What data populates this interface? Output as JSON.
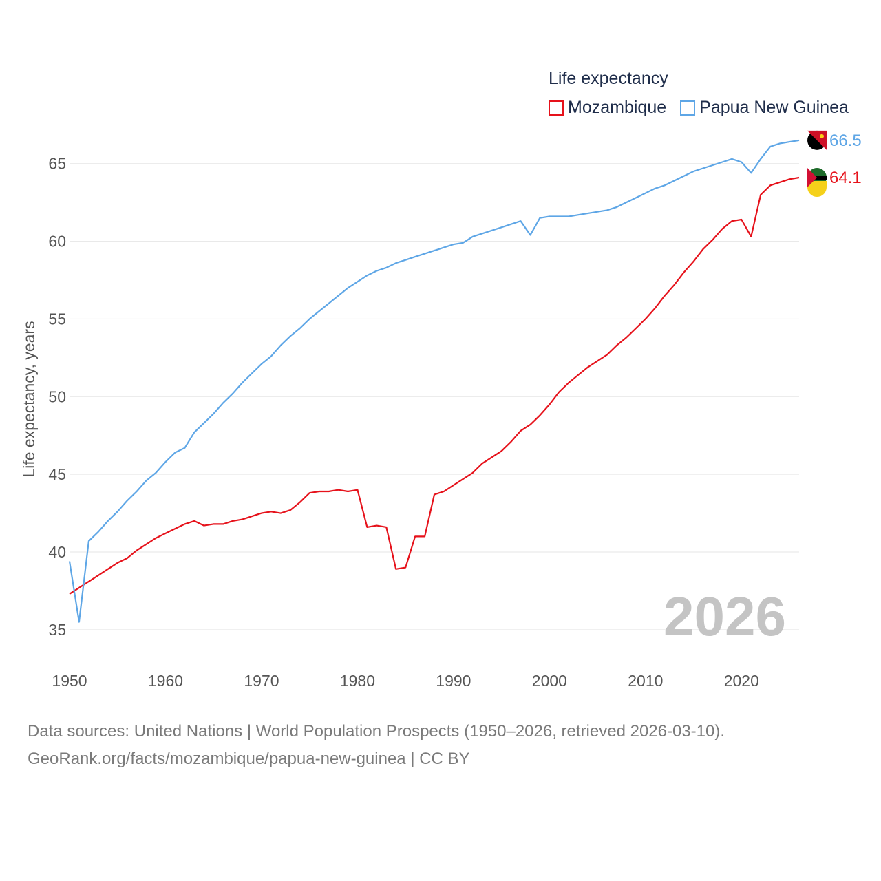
{
  "legend": {
    "title": "Life expectancy",
    "items": [
      {
        "label": "Mozambique",
        "color": "#e6121b"
      },
      {
        "label": "Papua New Guinea",
        "color": "#5ea6e6"
      }
    ]
  },
  "year_watermark": "2026",
  "sources": {
    "line1": "Data sources: United Nations | World Population Prospects (1950–2026, retrieved 2026-03-10).",
    "line2": "GeoRank.org/facts/mozambique/papua-new-guinea | CC BY"
  },
  "chart_data": {
    "type": "line",
    "title": "Life expectancy",
    "xlabel": "",
    "ylabel": "Life expectancy, years",
    "xlim": [
      1950,
      2026
    ],
    "ylim": [
      33,
      68
    ],
    "xticks": [
      1950,
      1960,
      1970,
      1980,
      1990,
      2000,
      2010,
      2020
    ],
    "yticks": [
      35,
      40,
      45,
      50,
      55,
      60,
      65
    ],
    "grid": true,
    "legend_position": "top-right",
    "x": [
      1950,
      1951,
      1952,
      1953,
      1954,
      1955,
      1956,
      1957,
      1958,
      1959,
      1960,
      1961,
      1962,
      1963,
      1964,
      1965,
      1966,
      1967,
      1968,
      1969,
      1970,
      1971,
      1972,
      1973,
      1974,
      1975,
      1976,
      1977,
      1978,
      1979,
      1980,
      1981,
      1982,
      1983,
      1984,
      1985,
      1986,
      1987,
      1988,
      1989,
      1990,
      1991,
      1992,
      1993,
      1994,
      1995,
      1996,
      1997,
      1998,
      1999,
      2000,
      2001,
      2002,
      2003,
      2004,
      2005,
      2006,
      2007,
      2008,
      2009,
      2010,
      2011,
      2012,
      2013,
      2014,
      2015,
      2016,
      2017,
      2018,
      2019,
      2020,
      2021,
      2022,
      2023,
      2024,
      2025,
      2026
    ],
    "series": [
      {
        "name": "Mozambique",
        "color": "#e6121b",
        "end_label": "64.1",
        "values": [
          37.3,
          37.7,
          38.1,
          38.5,
          38.9,
          39.3,
          39.6,
          40.1,
          40.5,
          40.9,
          41.2,
          41.5,
          41.8,
          42.0,
          41.7,
          41.8,
          41.8,
          42.0,
          42.1,
          42.3,
          42.5,
          42.6,
          42.5,
          42.7,
          43.2,
          43.8,
          43.9,
          43.9,
          44.0,
          43.9,
          44.0,
          41.6,
          41.7,
          41.6,
          38.9,
          39.0,
          41.0,
          41.0,
          43.7,
          43.9,
          44.3,
          44.7,
          45.1,
          45.7,
          46.1,
          46.5,
          47.1,
          47.8,
          48.2,
          48.8,
          49.5,
          50.3,
          50.9,
          51.4,
          51.9,
          52.3,
          52.7,
          53.3,
          53.8,
          54.4,
          55.0,
          55.7,
          56.5,
          57.2,
          58.0,
          58.7,
          59.5,
          60.1,
          60.8,
          61.3,
          61.4,
          60.3,
          63.0,
          63.6,
          63.8,
          64.0,
          64.1
        ]
      },
      {
        "name": "Papua New Guinea",
        "color": "#5ea6e6",
        "end_label": "66.5",
        "values": [
          39.4,
          35.5,
          40.7,
          41.3,
          42.0,
          42.6,
          43.3,
          43.9,
          44.6,
          45.1,
          45.8,
          46.4,
          46.7,
          47.7,
          48.3,
          48.9,
          49.6,
          50.2,
          50.9,
          51.5,
          52.1,
          52.6,
          53.3,
          53.9,
          54.4,
          55.0,
          55.5,
          56.0,
          56.5,
          57.0,
          57.4,
          57.8,
          58.1,
          58.3,
          58.6,
          58.8,
          59.0,
          59.2,
          59.4,
          59.6,
          59.8,
          59.9,
          60.3,
          60.5,
          60.7,
          60.9,
          61.1,
          61.3,
          60.4,
          61.5,
          61.6,
          61.6,
          61.6,
          61.7,
          61.8,
          61.9,
          62.0,
          62.2,
          62.5,
          62.8,
          63.1,
          63.4,
          63.6,
          63.9,
          64.2,
          64.5,
          64.7,
          64.9,
          65.1,
          65.3,
          65.1,
          64.4,
          65.3,
          66.1,
          66.3,
          66.4,
          66.5
        ]
      }
    ]
  }
}
